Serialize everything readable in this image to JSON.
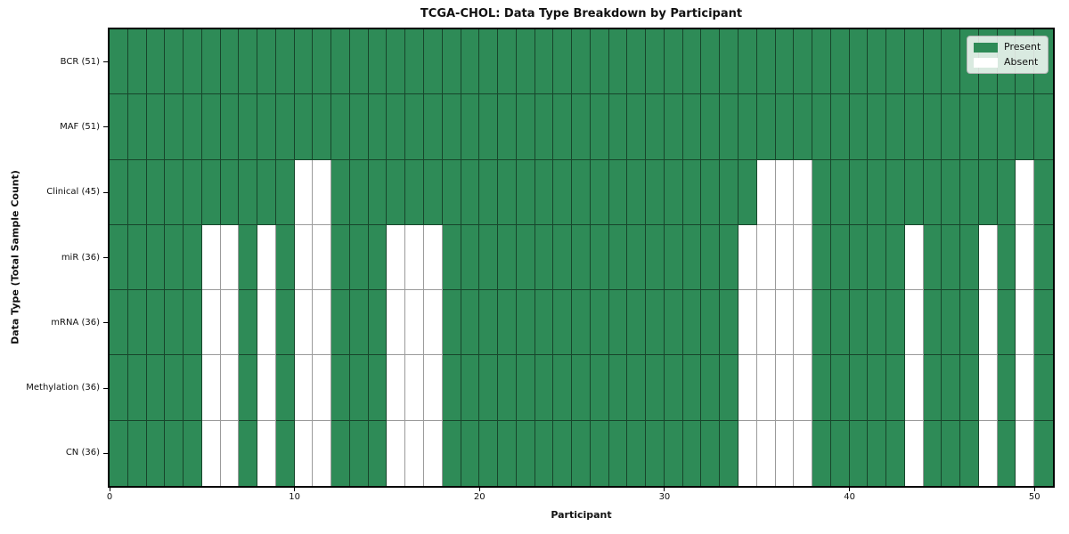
{
  "figure": {
    "title": "TCGA-CHOL: Data Type Breakdown by Participant",
    "x_axis_label": "Participant",
    "y_axis_label": "Data Type (Total Sample Count)"
  },
  "legend": {
    "position": "upper right",
    "items": [
      {
        "label": "Present",
        "color": "#2E8B57"
      },
      {
        "label": "Absent",
        "color": "#FFFFFF"
      }
    ]
  },
  "chart_data": {
    "type": "heatmap",
    "title": "TCGA-CHOL: Data Type Breakdown by Participant",
    "xlabel": "Participant",
    "ylabel": "Data Type (Total Sample Count)",
    "x_range": [
      0,
      51
    ],
    "x_ticks": [
      0,
      10,
      20,
      30,
      40,
      50
    ],
    "n_participants": 51,
    "grid": "cell-borders-on",
    "colors": {
      "present": "#2E8B57",
      "absent": "#FFFFFF"
    },
    "states": [
      "Present",
      "Absent"
    ],
    "rows": [
      {
        "label": "BCR (51)",
        "data_type": "BCR",
        "present_count": 51,
        "absent_participants": []
      },
      {
        "label": "MAF (51)",
        "data_type": "MAF",
        "present_count": 51,
        "absent_participants": []
      },
      {
        "label": "Clinical (45)",
        "data_type": "Clinical",
        "present_count": 45,
        "absent_participants": [
          10,
          11,
          35,
          36,
          37,
          49
        ]
      },
      {
        "label": "miR (36)",
        "data_type": "miR",
        "present_count": 36,
        "absent_participants": [
          5,
          6,
          8,
          10,
          11,
          15,
          16,
          17,
          34,
          35,
          36,
          37,
          43,
          47,
          49
        ]
      },
      {
        "label": "mRNA (36)",
        "data_type": "mRNA",
        "present_count": 36,
        "absent_participants": [
          5,
          6,
          8,
          10,
          11,
          15,
          16,
          17,
          34,
          35,
          36,
          37,
          43,
          47,
          49
        ]
      },
      {
        "label": "Methylation (36)",
        "data_type": "Methylation",
        "present_count": 36,
        "absent_participants": [
          5,
          6,
          8,
          10,
          11,
          15,
          16,
          17,
          34,
          35,
          36,
          37,
          43,
          47,
          49
        ]
      },
      {
        "label": "CN (36)",
        "data_type": "CN",
        "present_count": 36,
        "absent_participants": [
          5,
          6,
          8,
          10,
          11,
          15,
          16,
          17,
          34,
          35,
          36,
          37,
          43,
          47,
          49
        ]
      }
    ]
  }
}
